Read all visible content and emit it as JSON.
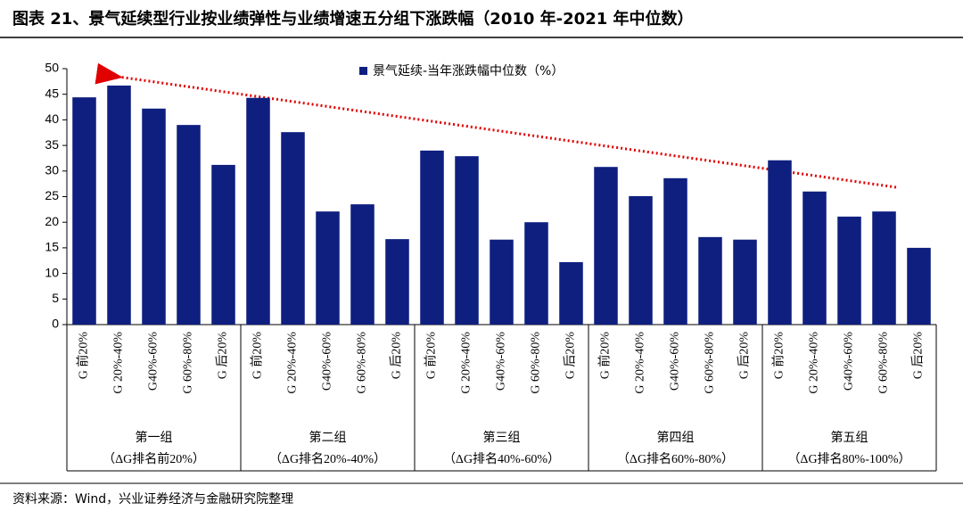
{
  "chart_data": {
    "type": "bar",
    "title": "图表 21、景气延续型行业按业绩弹性与业绩增速五分组下涨跌幅（2010 年-2021 年中位数）",
    "source": "资料来源：Wind，兴业证券经济与金融研究院整理",
    "categories": [
      "G 前20%",
      "G 20%-40%",
      "G40%-60%",
      "G 60%-80%",
      "G 后20%",
      "G 前20%",
      "G 20%-40%",
      "G40%-60%",
      "G 60%-80%",
      "G 后20%",
      "G 前20%",
      "G 20%-40%",
      "G40%-60%",
      "G 60%-80%",
      "G 后20%",
      "G 前20%",
      "G 20%-40%",
      "G40%-60%",
      "G 60%-80%",
      "G 后20%",
      "G 前20%",
      "G 20%-40%",
      "G40%-60%",
      "G 60%-80%",
      "G 后20%"
    ],
    "groups": [
      {
        "name": "第一组",
        "subtitle": "（ΔG排名前20%）"
      },
      {
        "name": "第二组",
        "subtitle": "（ΔG排名20%-40%）"
      },
      {
        "name": "第三组",
        "subtitle": "（ΔG排名40%-60%）"
      },
      {
        "name": "第四组",
        "subtitle": "（ΔG排名60%-80%）"
      },
      {
        "name": "第五组",
        "subtitle": "（ΔG排名80%-100%）"
      }
    ],
    "series": [
      {
        "name": "景气延续-当年涨跌幅中位数（%）",
        "color": "#0f1f80",
        "values": [
          44.4,
          46.7,
          42.2,
          39.0,
          31.2,
          44.3,
          37.6,
          22.1,
          23.5,
          16.7,
          34.0,
          32.9,
          16.6,
          20.0,
          12.2,
          30.8,
          25.1,
          28.6,
          17.1,
          16.6,
          32.1,
          26.0,
          21.1,
          22.1,
          15.0
        ]
      }
    ],
    "ylim": [
      0,
      50
    ],
    "yticks": [
      0,
      5,
      10,
      15,
      20,
      25,
      30,
      35,
      40,
      45,
      50
    ]
  }
}
